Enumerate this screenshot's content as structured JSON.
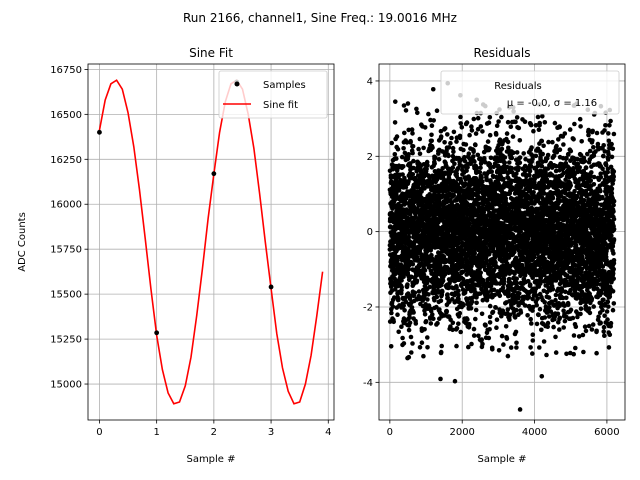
{
  "figure": {
    "suptitle": "Run 2166, channel1, Sine Freq.: 19.0016 MHz"
  },
  "chart_data": [
    {
      "type": "line",
      "title": "Sine Fit",
      "xlabel": "Sample #",
      "ylabel": "ADC Counts",
      "xlim": [
        -0.2,
        4.1
      ],
      "ylim": [
        14800,
        16780
      ],
      "xticks": [
        0,
        1,
        2,
        3,
        4
      ],
      "yticks": [
        15000,
        15250,
        15500,
        15750,
        16000,
        16250,
        16500,
        16750
      ],
      "grid": true,
      "legend": "top-right",
      "samples": {
        "name": "Samples",
        "color": "#000000",
        "x": [
          0,
          1,
          2,
          3,
          2.4
        ],
        "y": [
          16400,
          15285,
          16170,
          15540,
          16680
        ]
      },
      "fit": {
        "name": "Sine fit",
        "color": "#ff0000",
        "x": [
          0.0,
          0.1,
          0.2,
          0.3,
          0.4,
          0.5,
          0.6,
          0.7,
          0.8,
          0.9,
          1.0,
          1.1,
          1.2,
          1.3,
          1.4,
          1.5,
          1.6,
          1.7,
          1.8,
          1.9,
          2.0,
          2.1,
          2.2,
          2.3,
          2.4,
          2.5,
          2.6,
          2.7,
          2.8,
          2.9,
          3.0,
          3.1,
          3.2,
          3.3,
          3.4,
          3.5,
          3.6,
          3.7,
          3.8,
          3.9
        ],
        "y": [
          16410,
          16580,
          16670,
          16690,
          16640,
          16510,
          16320,
          16080,
          15810,
          15530,
          15270,
          15080,
          14950,
          14890,
          14900,
          14990,
          15150,
          15380,
          15640,
          15920,
          16170,
          16400,
          16570,
          16670,
          16690,
          16640,
          16500,
          16310,
          16060,
          15790,
          15530,
          15280,
          15090,
          14960,
          14890,
          14900,
          15000,
          15160,
          15380,
          15625
        ]
      }
    },
    {
      "type": "scatter",
      "title": "Residuals",
      "xlabel": "Sample #",
      "ylabel": "",
      "xlim": [
        -300,
        6500
      ],
      "ylim": [
        -5.0,
        4.45
      ],
      "xticks": [
        0,
        2000,
        4000,
        6000
      ],
      "yticks": [
        -4,
        -2,
        0,
        2,
        4
      ],
      "grid": true,
      "legend": "top-right",
      "series": [
        {
          "name": "Residuals",
          "color": "#000000",
          "n_points": 6200,
          "x_range": [
            0,
            6200
          ],
          "mean": -0.0,
          "sigma": 1.16
        }
      ],
      "outliers": [
        {
          "x": 3600,
          "y": -4.72
        },
        {
          "x": 4200,
          "y": -3.84
        },
        {
          "x": 1800,
          "y": -3.97
        },
        {
          "x": 1400,
          "y": -3.91
        },
        {
          "x": 1600,
          "y": 3.94
        },
        {
          "x": 1950,
          "y": 3.62
        },
        {
          "x": 1200,
          "y": 3.78
        },
        {
          "x": 150,
          "y": 3.45
        },
        {
          "x": 500,
          "y": 3.4
        },
        {
          "x": 3300,
          "y": 3.3
        },
        {
          "x": 2400,
          "y": 3.5
        },
        {
          "x": 5100,
          "y": 3.35
        }
      ],
      "legend_lines": [
        "Residuals",
        "μ = -0.0, σ = 1.16"
      ]
    }
  ]
}
